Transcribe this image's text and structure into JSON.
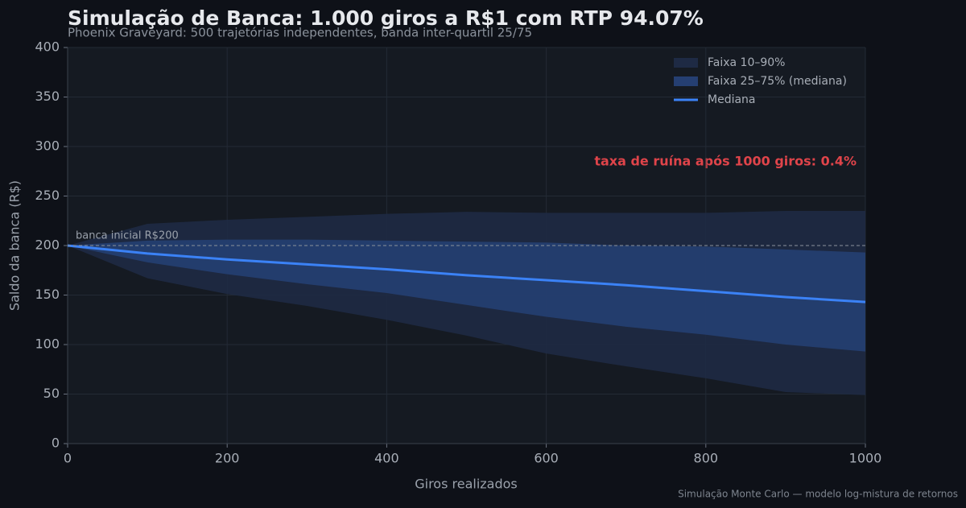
{
  "chart_data": {
    "type": "band",
    "title": "Simulação de Banca: 1.000 giros a R$1 com RTP 94.07%",
    "subtitle": "Phoenix Graveyard: 500 trajetórias independentes, banda inter-quartil 25/75",
    "x_label": "Giros realizados",
    "y_label": "Saldo da banca (R$)",
    "footer": "Simulação Monte Carlo — modelo log-mistura de retornos",
    "x": [
      0,
      100,
      200,
      300,
      400,
      500,
      600,
      700,
      800,
      900,
      1000
    ],
    "series": [
      {
        "name": "Faixa 10–90%",
        "color": "#1e2a44",
        "upper": [
          200,
          222,
          226,
          229,
          232,
          234,
          233,
          233,
          233,
          235,
          235
        ],
        "lower": [
          200,
          167,
          151,
          139,
          125,
          109,
          91,
          78,
          66,
          52,
          49
        ]
      },
      {
        "name": "Faixa 25–75% (mediana)",
        "color": "#253f72",
        "upper": [
          200,
          205,
          206,
          206,
          205,
          204,
          203,
          200,
          199,
          196,
          193
        ],
        "lower": [
          200,
          183,
          171,
          161,
          152,
          140,
          128,
          118,
          110,
          100,
          93
        ]
      },
      {
        "name": "Mediana",
        "color": "#3b82f6",
        "values": [
          200,
          192,
          186,
          181,
          176,
          170,
          165,
          160,
          154,
          148,
          143
        ]
      }
    ],
    "reference_line": {
      "value": 200,
      "label": "banca inicial R$200"
    },
    "annotation": "taxa de ruína após 1000 giros: 0.4%",
    "xlim": [
      0,
      1000
    ],
    "xticks": [
      0,
      200,
      400,
      600,
      800,
      1000
    ],
    "ylim": [
      0,
      400
    ],
    "yticks": [
      0,
      50,
      100,
      150,
      200,
      250,
      300,
      350,
      400
    ],
    "grid": true,
    "legend": "upper right"
  }
}
